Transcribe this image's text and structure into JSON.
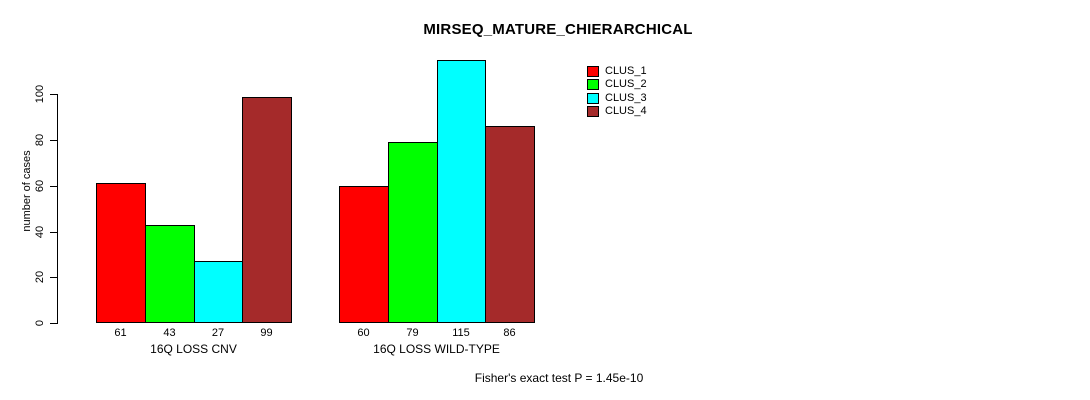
{
  "title": "MIRSEQ_MATURE_CHIERARCHICAL",
  "footer": "Fisher's exact test P = 1.45e-10",
  "chart_data": {
    "type": "bar",
    "title": "MIRSEQ_MATURE_CHIERARCHICAL",
    "xlabel": "",
    "ylabel": "number of cases",
    "ylim": [
      0,
      115
    ],
    "yticks": [
      0,
      20,
      40,
      60,
      80,
      100
    ],
    "grid": false,
    "legend_position": "top-right",
    "categories": [
      "16Q LOSS CNV",
      "16Q LOSS WILD-TYPE"
    ],
    "series": [
      {
        "name": "CLUS_1",
        "color": "#FF0000",
        "values": [
          61,
          60
        ]
      },
      {
        "name": "CLUS_2",
        "color": "#00FF00",
        "values": [
          43,
          79
        ]
      },
      {
        "name": "CLUS_3",
        "color": "#00FFFF",
        "values": [
          27,
          115
        ]
      },
      {
        "name": "CLUS_4",
        "color": "#A52A2A",
        "values": [
          99,
          86
        ]
      }
    ],
    "values_shown_under_bars": true,
    "bar_border_color": "#000000",
    "annotation": "Fisher's exact test P = 1.45e-10"
  }
}
